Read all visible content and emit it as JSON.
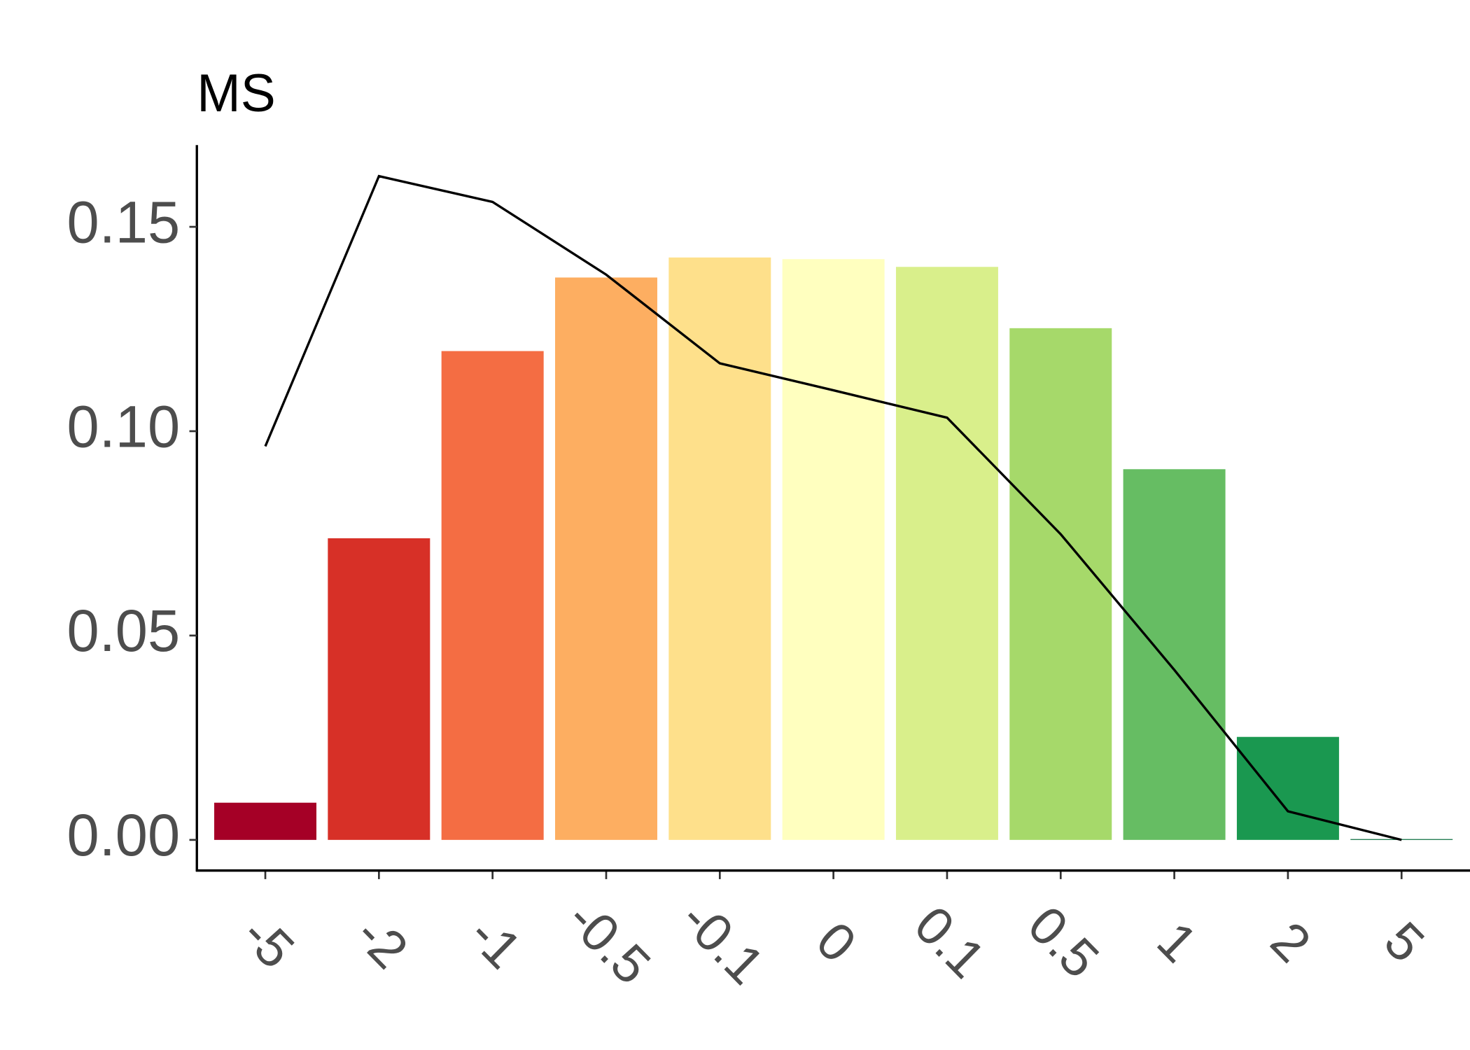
{
  "chart_data": {
    "type": "bar",
    "ylabel": "MS",
    "categories": [
      "-5",
      "-2",
      "-1",
      "-0.5",
      "-0.1",
      "0",
      "0.1",
      "0.5",
      "1",
      "2",
      "5"
    ],
    "values": [
      0.0091,
      0.0738,
      0.1196,
      0.1376,
      0.1425,
      0.1421,
      0.1402,
      0.1252,
      0.0907,
      0.0252,
      0.0002
    ],
    "colors": [
      "#a50026",
      "#d73027",
      "#f46d43",
      "#fdae61",
      "#fee08b",
      "#ffffbf",
      "#d9ef8b",
      "#a6d96a",
      "#66bd63",
      "#1a9850",
      "#006837"
    ],
    "line_values": [
      0.0963,
      0.1624,
      0.1561,
      0.1383,
      0.1166,
      0.11,
      0.1033,
      0.0748,
      0.0416,
      0.007,
      0.0
    ],
    "line_color": "#000000",
    "ylim": [
      -0.0075,
      0.17
    ],
    "yticks": [
      {
        "value": 0,
        "label": "0.00"
      },
      {
        "value": 0.05,
        "label": "0.05"
      },
      {
        "value": 0.1,
        "label": "0.10"
      },
      {
        "value": 0.15,
        "label": "0.15"
      }
    ],
    "grid": false
  }
}
